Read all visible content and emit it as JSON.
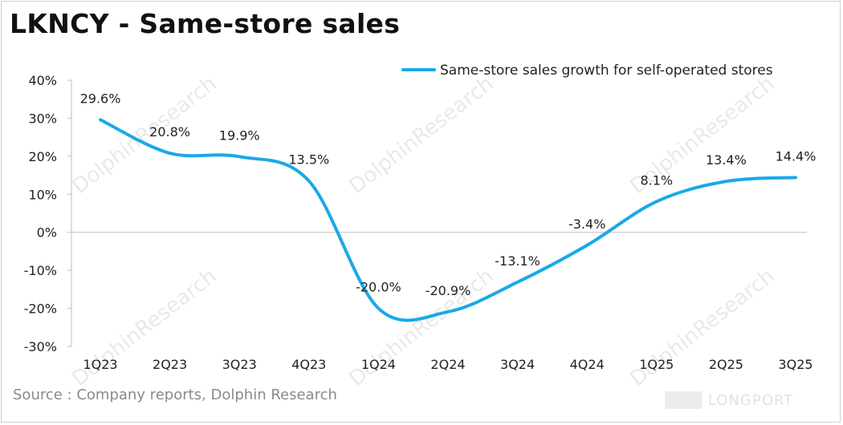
{
  "title": "LKNCY - Same-store sales",
  "source": "Source : Company reports, Dolphin Research",
  "watermark": {
    "brand": "DolphinResearch",
    "logo": "LONGPORT"
  },
  "colors": {
    "line": "#1aa9e6",
    "axis": "#bfbfbf",
    "text": "#222222"
  },
  "chart_data": {
    "type": "line",
    "title": "LKNCY - Same-store sales",
    "xlabel": "",
    "ylabel": "",
    "categories": [
      "1Q23",
      "2Q23",
      "3Q23",
      "4Q23",
      "1Q24",
      "2Q24",
      "3Q24",
      "4Q24",
      "1Q25",
      "2Q25",
      "3Q25"
    ],
    "series": [
      {
        "name": "Same-store sales growth for self-operated stores",
        "values": [
          29.6,
          20.8,
          19.9,
          13.5,
          -20.0,
          -20.9,
          -13.1,
          -3.4,
          8.1,
          13.4,
          14.4
        ],
        "labels": [
          "29.6%",
          "20.8%",
          "19.9%",
          "13.5%",
          "-20.0%",
          "-20.9%",
          "-13.1%",
          "-3.4%",
          "8.1%",
          "13.4%",
          "14.4%"
        ]
      }
    ],
    "ylim": [
      -30,
      40
    ],
    "yticks": [
      -30,
      -20,
      -10,
      0,
      10,
      20,
      30,
      40
    ],
    "ytick_labels": [
      "-30%",
      "-20%",
      "-10%",
      "0%",
      "10%",
      "20%",
      "30%",
      "40%"
    ],
    "grid": false,
    "legend": "top-right"
  }
}
